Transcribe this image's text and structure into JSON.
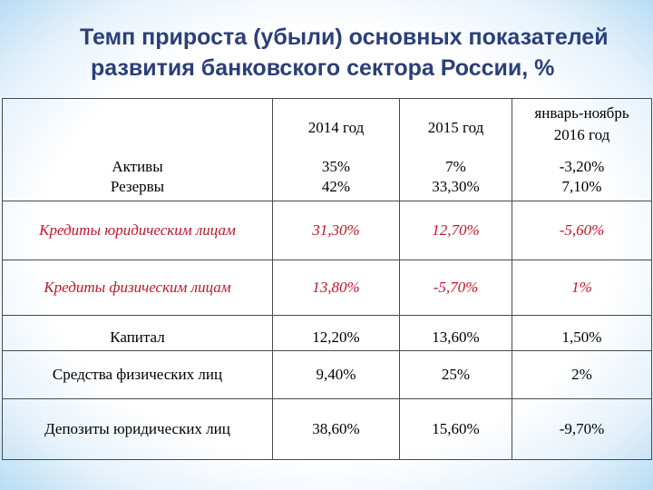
{
  "title": {
    "line1": "Темп прироста (убыли) основных показателей",
    "line2": "развития банковского сектора России, %"
  },
  "columns": [
    "2014 год",
    "2015 год",
    "январь-ноябрь 2016 год"
  ],
  "columns_2016": {
    "line1": "январь-ноябрь",
    "line2": "2016 год"
  },
  "rows": [
    {
      "label": "Активы",
      "values": [
        "35%",
        "7%",
        "-3,20%"
      ]
    },
    {
      "label": "Резервы",
      "values": [
        "42%",
        "33,30%",
        "7,10%"
      ]
    },
    {
      "label": "Кредиты юридическим лицам",
      "values": [
        "31,30%",
        "12,70%",
        "-5,60%"
      ],
      "highlight": true
    },
    {
      "label": "Кредиты физическим лицам",
      "values": [
        "13,80%",
        "-5,70%",
        "1%"
      ],
      "highlight": true
    },
    {
      "label": "Капитал",
      "values": [
        "12,20%",
        "13,60%",
        "1,50%"
      ]
    },
    {
      "label": "Средства физических лиц",
      "values": [
        "9,40%",
        "25%",
        "2%"
      ]
    },
    {
      "label": "Депозиты юридических лиц",
      "values": [
        "38,60%",
        "15,60%",
        "-9,70%"
      ]
    }
  ],
  "colors": {
    "title": "#2b3f78",
    "highlight": "#c0172b",
    "border": "#4a4a4a",
    "frame_glow": "#b9dcf4"
  }
}
